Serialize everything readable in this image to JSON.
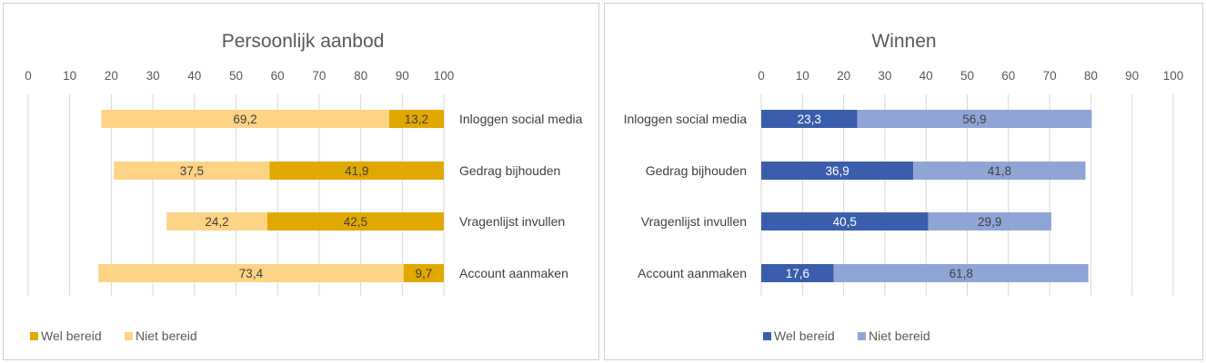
{
  "chart_data": [
    {
      "type": "bar",
      "orientation": "horizontal",
      "stacked": true,
      "x_reversed": true,
      "title": "Persoonlijk aanbod",
      "categories": [
        "Inloggen social media",
        "Gedrag bijhouden",
        "Vragenlijst invullen",
        "Account aanmaken"
      ],
      "series": [
        {
          "name": "Wel bereid",
          "values": [
            13.2,
            41.9,
            42.5,
            9.7
          ],
          "labels": [
            "13,2",
            "41,9",
            "42,5",
            "9,7"
          ],
          "color": "#E1A800",
          "label_color": "#404040"
        },
        {
          "name": "Niet bereid",
          "values": [
            69.2,
            37.5,
            24.2,
            73.4
          ],
          "labels": [
            "69,2",
            "37,5",
            "24,2",
            "73,4"
          ],
          "color": "#FDD385",
          "label_color": "#404040"
        }
      ],
      "xlim": [
        0,
        100
      ],
      "ticks": [
        "0",
        "10",
        "20",
        "30",
        "40",
        "50",
        "60",
        "70",
        "80",
        "90",
        "100"
      ],
      "tick_position": "top",
      "category_axis": "right",
      "grid": true,
      "legend": "bottom-left"
    },
    {
      "type": "bar",
      "orientation": "horizontal",
      "stacked": true,
      "x_reversed": false,
      "title": "Winnen",
      "categories": [
        "Inloggen social media",
        "Gedrag bijhouden",
        "Vragenlijst invullen",
        "Account aanmaken"
      ],
      "series": [
        {
          "name": "Wel bereid",
          "values": [
            23.3,
            36.9,
            40.5,
            17.6
          ],
          "labels": [
            "23,3",
            "36,9",
            "40,5",
            "17,6"
          ],
          "color": "#3A5EAB",
          "label_color": "#ffffff"
        },
        {
          "name": "Niet bereid",
          "values": [
            56.9,
            41.8,
            29.9,
            61.8
          ],
          "labels": [
            "56,9",
            "41,8",
            "29,9",
            "61,8"
          ],
          "color": "#8FA5D6",
          "label_color": "#404040"
        }
      ],
      "xlim": [
        0,
        100
      ],
      "ticks": [
        "0",
        "10",
        "20",
        "30",
        "40",
        "50",
        "60",
        "70",
        "80",
        "90",
        "100"
      ],
      "tick_position": "top",
      "category_axis": "left",
      "grid": true,
      "legend": "bottom-center"
    }
  ]
}
